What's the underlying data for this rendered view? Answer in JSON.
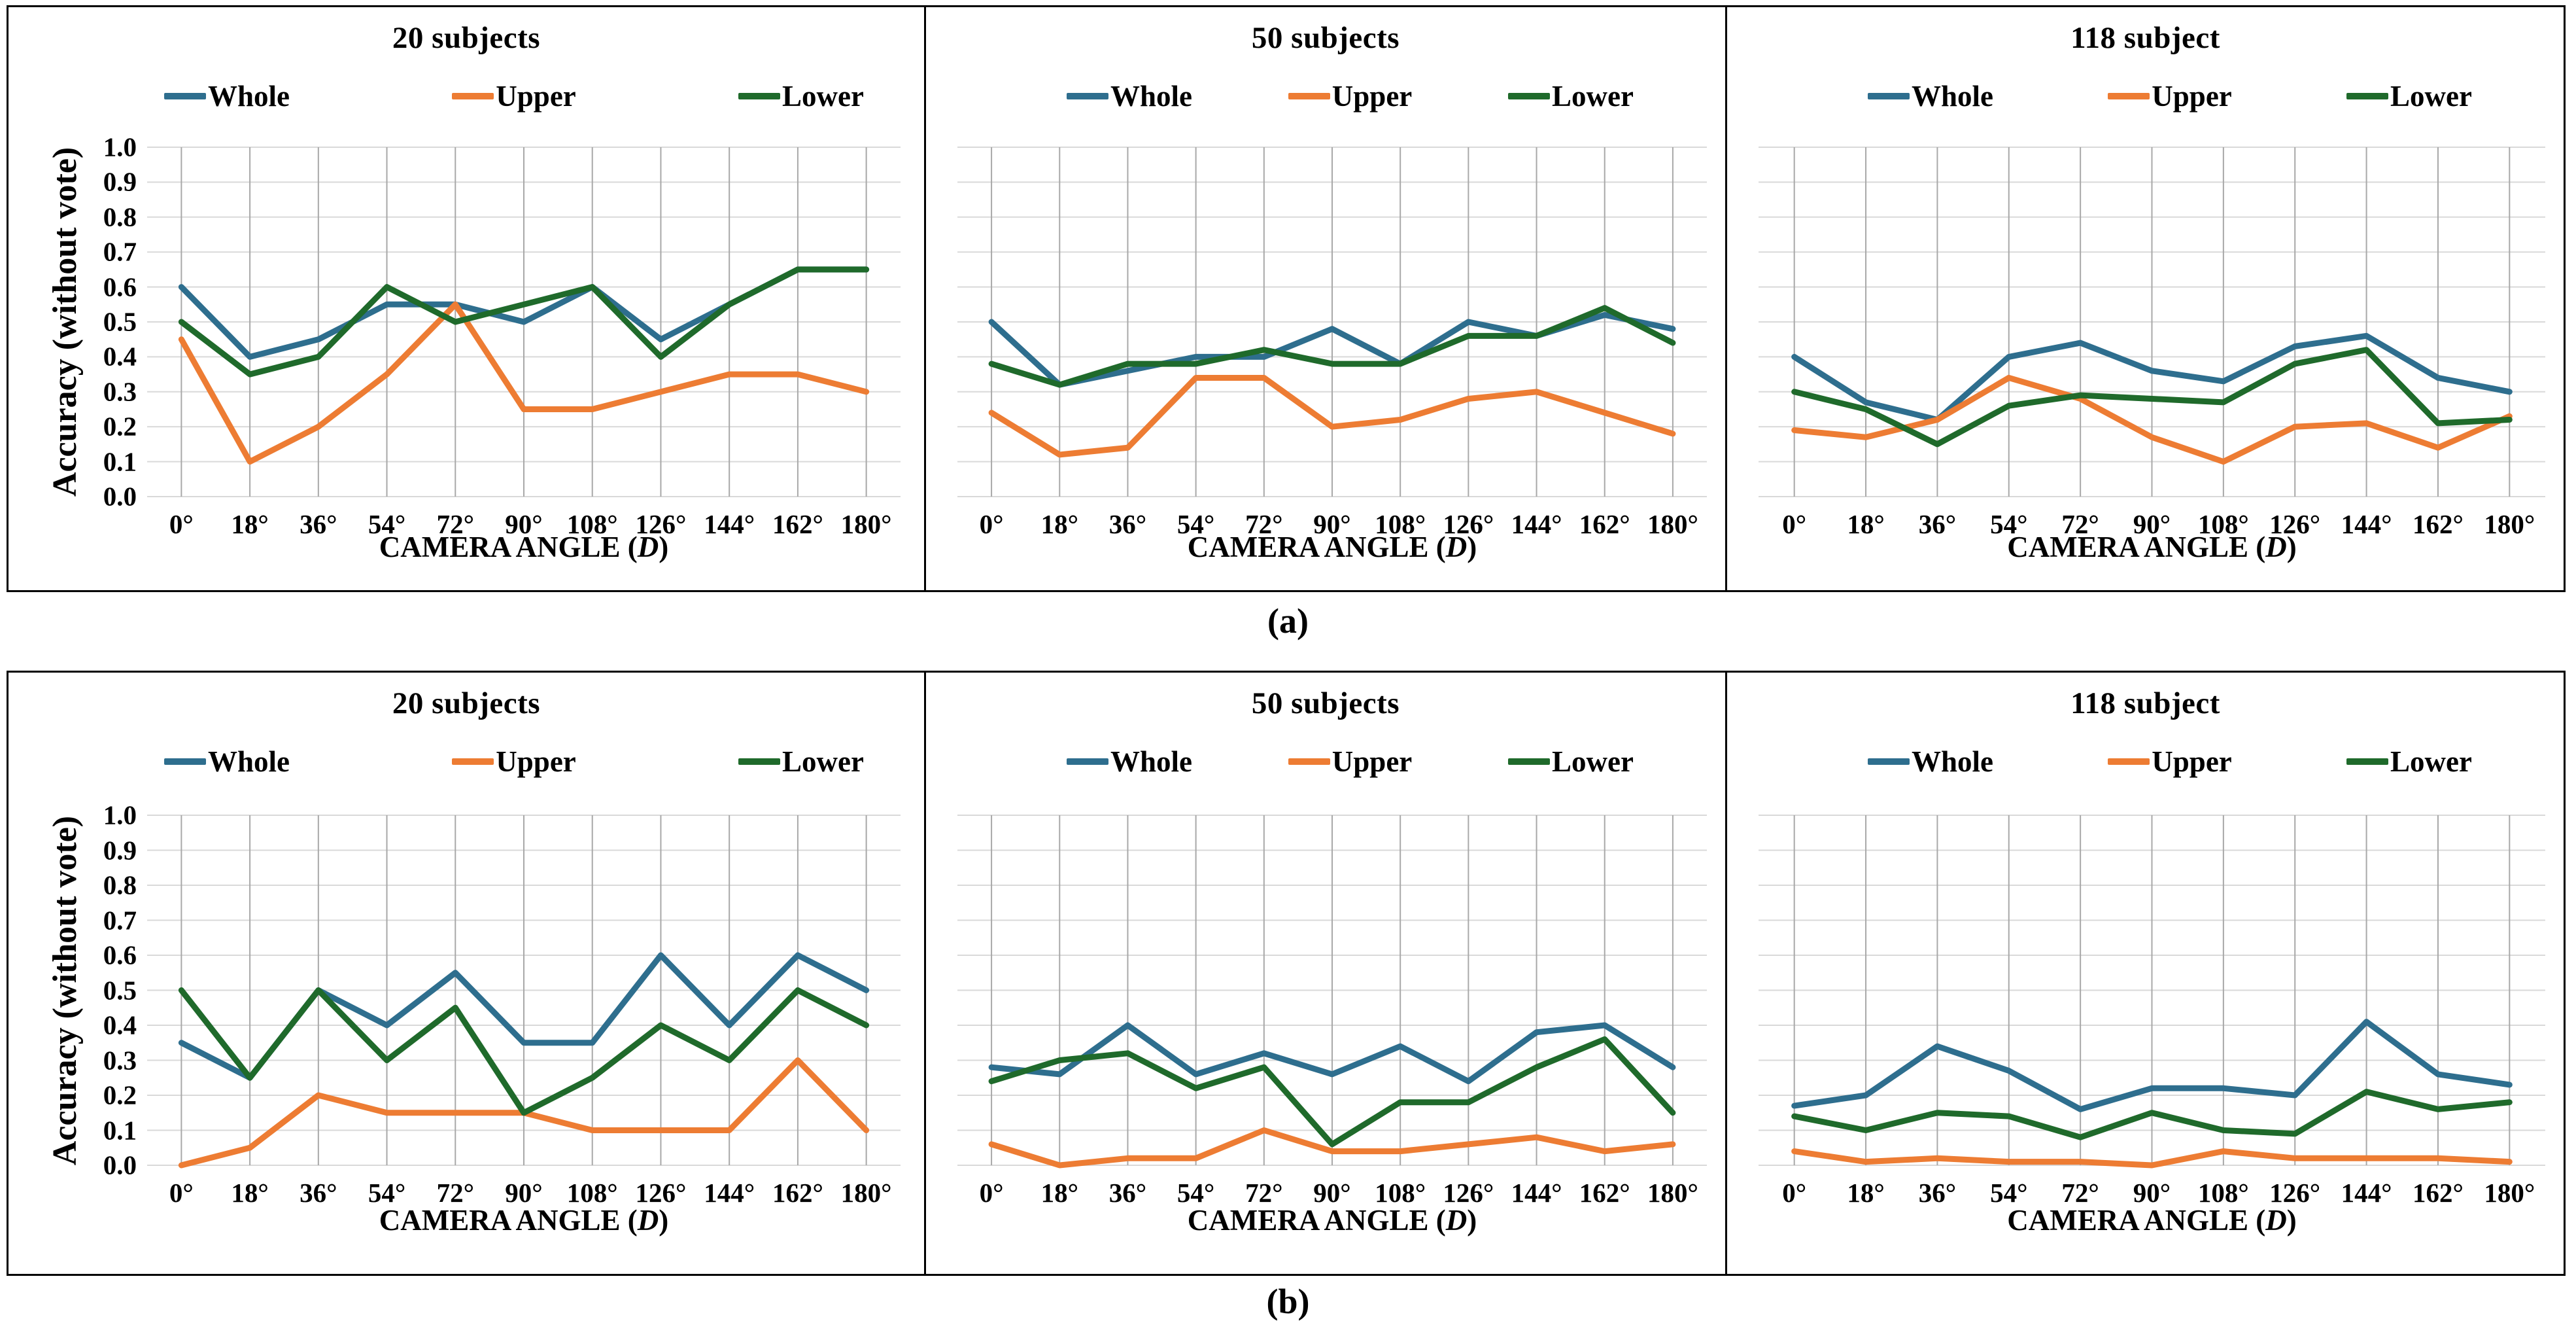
{
  "figure": {
    "captions": [
      "(a)",
      "(b)"
    ],
    "ylabel": "Accuracy (without vote)",
    "xlabel_prefix": "CAMERA ANGLE (",
    "xlabel_var": "D",
    "xlabel_suffix": ")",
    "x_categories": [
      "0°",
      "18°",
      "36°",
      "54°",
      "72°",
      "90°",
      "108°",
      "126°",
      "144°",
      "162°",
      "180°"
    ],
    "y_ticks": [
      "1.0",
      "0.9",
      "0.8",
      "0.7",
      "0.6",
      "0.5",
      "0.4",
      "0.3",
      "0.2",
      "0.1",
      "0.0"
    ],
    "legend": [
      {
        "name": "Whole",
        "color": "#2E6E8E"
      },
      {
        "name": "Upper",
        "color": "#ED7C33"
      },
      {
        "name": "Lower",
        "color": "#1F6A2B"
      }
    ],
    "grid_color_horizontal": "#D9D9D9",
    "grid_color_vertical": "#A8A8A8",
    "border_color": "#000000"
  },
  "chart_data": [
    {
      "id": "a-20",
      "row": "a",
      "type": "line",
      "title": "20 subjects",
      "xlabel": "CAMERA ANGLE (D)",
      "ylabel": "Accuracy (without vote)",
      "ylim": [
        0,
        1
      ],
      "categories": [
        "0°",
        "18°",
        "36°",
        "54°",
        "72°",
        "90°",
        "108°",
        "126°",
        "144°",
        "162°",
        "180°"
      ],
      "series": [
        {
          "name": "Whole",
          "values": [
            0.6,
            0.4,
            0.45,
            0.55,
            0.55,
            0.5,
            0.6,
            0.45,
            0.55,
            0.65,
            0.65
          ]
        },
        {
          "name": "Upper",
          "values": [
            0.45,
            0.1,
            0.2,
            0.35,
            0.55,
            0.25,
            0.25,
            0.3,
            0.35,
            0.35,
            0.3
          ]
        },
        {
          "name": "Lower",
          "values": [
            0.5,
            0.35,
            0.4,
            0.6,
            0.5,
            0.55,
            0.6,
            0.4,
            0.55,
            0.65,
            0.65
          ]
        }
      ]
    },
    {
      "id": "a-50",
      "row": "a",
      "type": "line",
      "title": "50 subjects",
      "xlabel": "CAMERA ANGLE (D)",
      "ylim": [
        0,
        1
      ],
      "categories": [
        "0°",
        "18°",
        "36°",
        "54°",
        "72°",
        "90°",
        "108°",
        "126°",
        "144°",
        "162°",
        "180°"
      ],
      "series": [
        {
          "name": "Whole",
          "values": [
            0.5,
            0.32,
            0.36,
            0.4,
            0.4,
            0.48,
            0.38,
            0.5,
            0.46,
            0.52,
            0.48
          ]
        },
        {
          "name": "Upper",
          "values": [
            0.24,
            0.12,
            0.14,
            0.34,
            0.34,
            0.2,
            0.22,
            0.28,
            0.3,
            0.24,
            0.18
          ]
        },
        {
          "name": "Lower",
          "values": [
            0.38,
            0.32,
            0.38,
            0.38,
            0.42,
            0.38,
            0.38,
            0.46,
            0.46,
            0.54,
            0.44
          ]
        }
      ]
    },
    {
      "id": "a-118",
      "row": "a",
      "type": "line",
      "title": "118 subject",
      "xlabel": "CAMERA ANGLE (D)",
      "ylim": [
        0,
        1
      ],
      "categories": [
        "0°",
        "18°",
        "36°",
        "54°",
        "72°",
        "90°",
        "108°",
        "126°",
        "144°",
        "162°",
        "180°"
      ],
      "series": [
        {
          "name": "Whole",
          "values": [
            0.4,
            0.27,
            0.22,
            0.4,
            0.44,
            0.36,
            0.33,
            0.43,
            0.46,
            0.34,
            0.3
          ]
        },
        {
          "name": "Upper",
          "values": [
            0.19,
            0.17,
            0.22,
            0.34,
            0.28,
            0.17,
            0.1,
            0.2,
            0.21,
            0.14,
            0.23
          ]
        },
        {
          "name": "Lower",
          "values": [
            0.3,
            0.25,
            0.15,
            0.26,
            0.29,
            0.28,
            0.27,
            0.38,
            0.42,
            0.21,
            0.22
          ]
        }
      ]
    },
    {
      "id": "b-20",
      "row": "b",
      "type": "line",
      "title": "20 subjects",
      "xlabel": "CAMERA ANGLE (D)",
      "ylim": [
        0,
        1
      ],
      "categories": [
        "0°",
        "18°",
        "36°",
        "54°",
        "72°",
        "90°",
        "108°",
        "126°",
        "144°",
        "162°",
        "180°"
      ],
      "series": [
        {
          "name": "Whole",
          "values": [
            0.35,
            0.25,
            0.5,
            0.4,
            0.55,
            0.35,
            0.35,
            0.6,
            0.4,
            0.6,
            0.5
          ]
        },
        {
          "name": "Upper",
          "values": [
            0.0,
            0.05,
            0.2,
            0.15,
            0.15,
            0.15,
            0.1,
            0.1,
            0.1,
            0.3,
            0.1
          ]
        },
        {
          "name": "Lower",
          "values": [
            0.5,
            0.25,
            0.5,
            0.3,
            0.45,
            0.15,
            0.25,
            0.4,
            0.3,
            0.5,
            0.4
          ]
        }
      ]
    },
    {
      "id": "b-50",
      "row": "b",
      "type": "line",
      "title": "50 subjects",
      "xlabel": "CAMERA ANGLE (D)",
      "ylim": [
        0,
        1
      ],
      "categories": [
        "0°",
        "18°",
        "36°",
        "54°",
        "72°",
        "90°",
        "108°",
        "126°",
        "144°",
        "162°",
        "180°"
      ],
      "series": [
        {
          "name": "Whole",
          "values": [
            0.28,
            0.26,
            0.4,
            0.26,
            0.32,
            0.26,
            0.34,
            0.24,
            0.38,
            0.4,
            0.28
          ]
        },
        {
          "name": "Upper",
          "values": [
            0.06,
            0.0,
            0.02,
            0.02,
            0.1,
            0.04,
            0.04,
            0.06,
            0.08,
            0.04,
            0.06
          ]
        },
        {
          "name": "Lower",
          "values": [
            0.24,
            0.3,
            0.32,
            0.22,
            0.28,
            0.06,
            0.18,
            0.18,
            0.28,
            0.36,
            0.15
          ]
        }
      ]
    },
    {
      "id": "b-118",
      "row": "b",
      "type": "line",
      "title": "118 subject",
      "xlabel": "CAMERA ANGLE (D)",
      "ylim": [
        0,
        1
      ],
      "categories": [
        "0°",
        "18°",
        "36°",
        "54°",
        "72°",
        "90°",
        "108°",
        "126°",
        "144°",
        "162°",
        "180°"
      ],
      "series": [
        {
          "name": "Whole",
          "values": [
            0.17,
            0.2,
            0.34,
            0.27,
            0.16,
            0.22,
            0.22,
            0.2,
            0.41,
            0.26,
            0.23
          ]
        },
        {
          "name": "Upper",
          "values": [
            0.04,
            0.01,
            0.02,
            0.01,
            0.01,
            0.0,
            0.04,
            0.02,
            0.02,
            0.02,
            0.01
          ]
        },
        {
          "name": "Lower",
          "values": [
            0.14,
            0.1,
            0.15,
            0.14,
            0.08,
            0.15,
            0.1,
            0.09,
            0.21,
            0.16,
            0.18
          ]
        }
      ]
    }
  ]
}
